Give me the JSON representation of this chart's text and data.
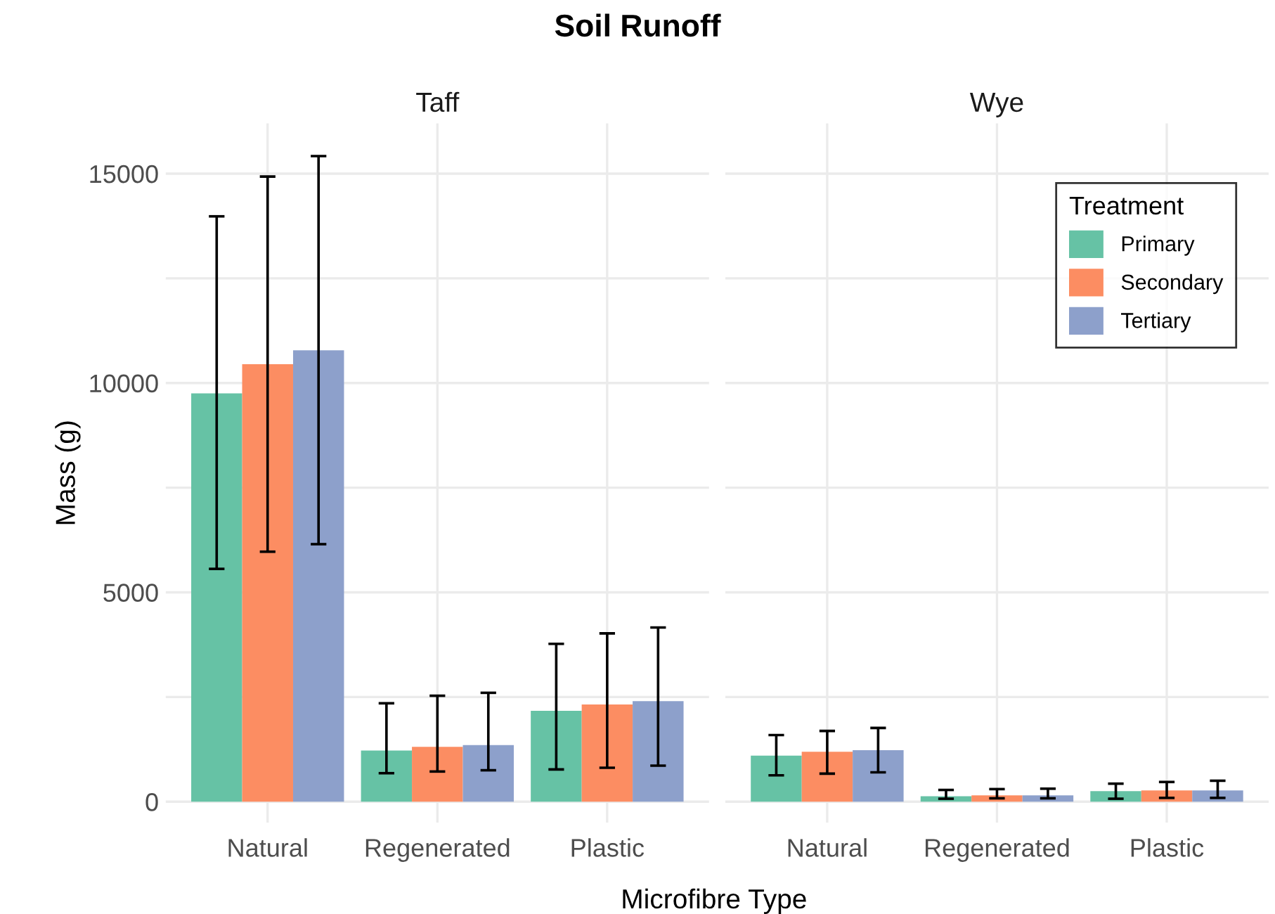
{
  "chart_data": [
    {
      "type": "bar",
      "title": "Soil Runoff",
      "subtitle": "Taff",
      "xlabel": "Microfibre Type",
      "ylabel": "Mass (g)",
      "categories": [
        "Natural",
        "Regenerated",
        "Plastic"
      ],
      "series": [
        {
          "color": "#66c2a5",
          "values": [
            9750,
            1220,
            2170
          ],
          "errors": [
            [
              5560,
              13980
            ],
            [
              680,
              2350
            ],
            [
              770,
              3770
            ]
          ]
        },
        {
          "color": "#fc8d62",
          "values": [
            10450,
            1310,
            2320
          ],
          "errors": [
            [
              5970,
              14930
            ],
            [
              720,
              2530
            ],
            [
              810,
              4020
            ]
          ]
        },
        {
          "color": "#8da0cb",
          "values": [
            10780,
            1350,
            2400
          ],
          "errors": [
            [
              6150,
              15420
            ],
            [
              750,
              2600
            ],
            [
              860,
              4160
            ]
          ]
        }
      ],
      "ylim": [
        -500,
        16200
      ],
      "yticks": [
        0,
        {
          "value": 2500,
          "label": null
        },
        5000,
        {
          "value": 7500,
          "label": null
        },
        10000,
        {
          "value": 12500,
          "label": null
        },
        15000
      ],
      "grid": true,
      "legend": false
    },
    {
      "type": "bar",
      "subtitle": "Wye",
      "legend_title": "Treatment",
      "categories": [
        "Natural",
        "Regenerated",
        "Plastic"
      ],
      "series": [
        {
          "name": "Primary",
          "color": "#66c2a5",
          "values": [
            1100,
            130,
            250
          ],
          "errors": [
            [
              630,
              1590
            ],
            [
              70,
              280
            ],
            [
              70,
              430
            ]
          ]
        },
        {
          "name": "Secondary",
          "color": "#fc8d62",
          "values": [
            1190,
            150,
            270
          ],
          "errors": [
            [
              670,
              1690
            ],
            [
              80,
              300
            ],
            [
              90,
              470
            ]
          ]
        },
        {
          "name": "Tertiary",
          "color": "#8da0cb",
          "values": [
            1230,
            150,
            270
          ],
          "errors": [
            [
              700,
              1760
            ],
            [
              80,
              310
            ],
            [
              90,
              500
            ]
          ]
        }
      ],
      "ylim": [
        -500,
        16200
      ],
      "yticks": [
        0,
        {
          "value": 2500,
          "label": null
        },
        5000,
        {
          "value": 7500,
          "label": null
        },
        10000,
        {
          "value": 12500,
          "label": null
        },
        15000
      ],
      "grid": true,
      "legend": "top right",
      "tick_labels": "x"
    }
  ]
}
